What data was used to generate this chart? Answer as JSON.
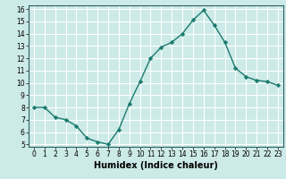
{
  "x": [
    0,
    1,
    2,
    3,
    4,
    5,
    6,
    7,
    8,
    9,
    10,
    11,
    12,
    13,
    14,
    15,
    16,
    17,
    18,
    19,
    20,
    21,
    22,
    23
  ],
  "y": [
    8.0,
    8.0,
    7.2,
    7.0,
    6.5,
    5.5,
    5.2,
    5.0,
    6.2,
    8.3,
    10.1,
    12.0,
    12.9,
    13.3,
    14.0,
    15.1,
    15.9,
    14.7,
    13.3,
    11.2,
    10.5,
    10.2,
    10.1,
    9.8
  ],
  "line_color": "#1a7a6e",
  "marker": "D",
  "marker_size": 2.2,
  "bg_color": "#cceae7",
  "grid_color": "#ffffff",
  "xlabel": "Humidex (Indice chaleur)",
  "ylim": [
    5,
    16
  ],
  "xlim": [
    -0.5,
    23.5
  ],
  "yticks": [
    5,
    6,
    7,
    8,
    9,
    10,
    11,
    12,
    13,
    14,
    15,
    16
  ],
  "xticks": [
    0,
    1,
    2,
    3,
    4,
    5,
    6,
    7,
    8,
    9,
    10,
    11,
    12,
    13,
    14,
    15,
    16,
    17,
    18,
    19,
    20,
    21,
    22,
    23
  ],
  "tick_fontsize": 5.5,
  "xlabel_fontsize": 7.0,
  "axis_color": "#2a6060",
  "linewidth": 1.0
}
